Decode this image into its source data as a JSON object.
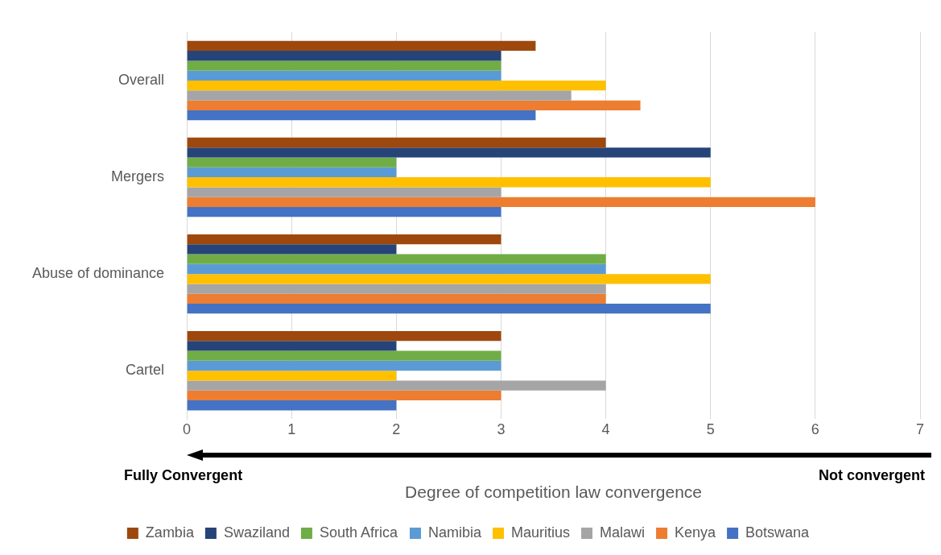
{
  "chart_data": {
    "type": "bar",
    "orientation": "horizontal",
    "xlabel": "Degree of competition law convergence",
    "categories": [
      "Overall",
      "Mergers",
      "Abuse of dominance",
      "Cartel"
    ],
    "series": [
      {
        "name": "Zambia",
        "color": "#9e480e",
        "values": [
          3.33,
          4,
          3,
          3
        ]
      },
      {
        "name": "Swaziland",
        "color": "#264478",
        "values": [
          3,
          5,
          2,
          2
        ]
      },
      {
        "name": "South Africa",
        "color": "#70ad47",
        "values": [
          3,
          2,
          4,
          3
        ]
      },
      {
        "name": "Namibia",
        "color": "#5b9bd5",
        "values": [
          3,
          2,
          4,
          3
        ]
      },
      {
        "name": "Mauritius",
        "color": "#ffc000",
        "values": [
          4,
          5,
          5,
          2
        ]
      },
      {
        "name": "Malawi",
        "color": "#a5a5a5",
        "values": [
          3.67,
          3,
          4,
          4
        ]
      },
      {
        "name": "Kenya",
        "color": "#ed7d31",
        "values": [
          4.33,
          6,
          4,
          3
        ]
      },
      {
        "name": "Botswana",
        "color": "#4472c4",
        "values": [
          3.33,
          3,
          5,
          2
        ]
      }
    ],
    "xlim": [
      0,
      7
    ],
    "xticks": [
      0,
      1,
      2,
      3,
      4,
      5,
      6,
      7
    ],
    "grid": "x",
    "legend": "bottom",
    "annotations": [
      "Fully Convergent",
      "Not convergent"
    ]
  }
}
